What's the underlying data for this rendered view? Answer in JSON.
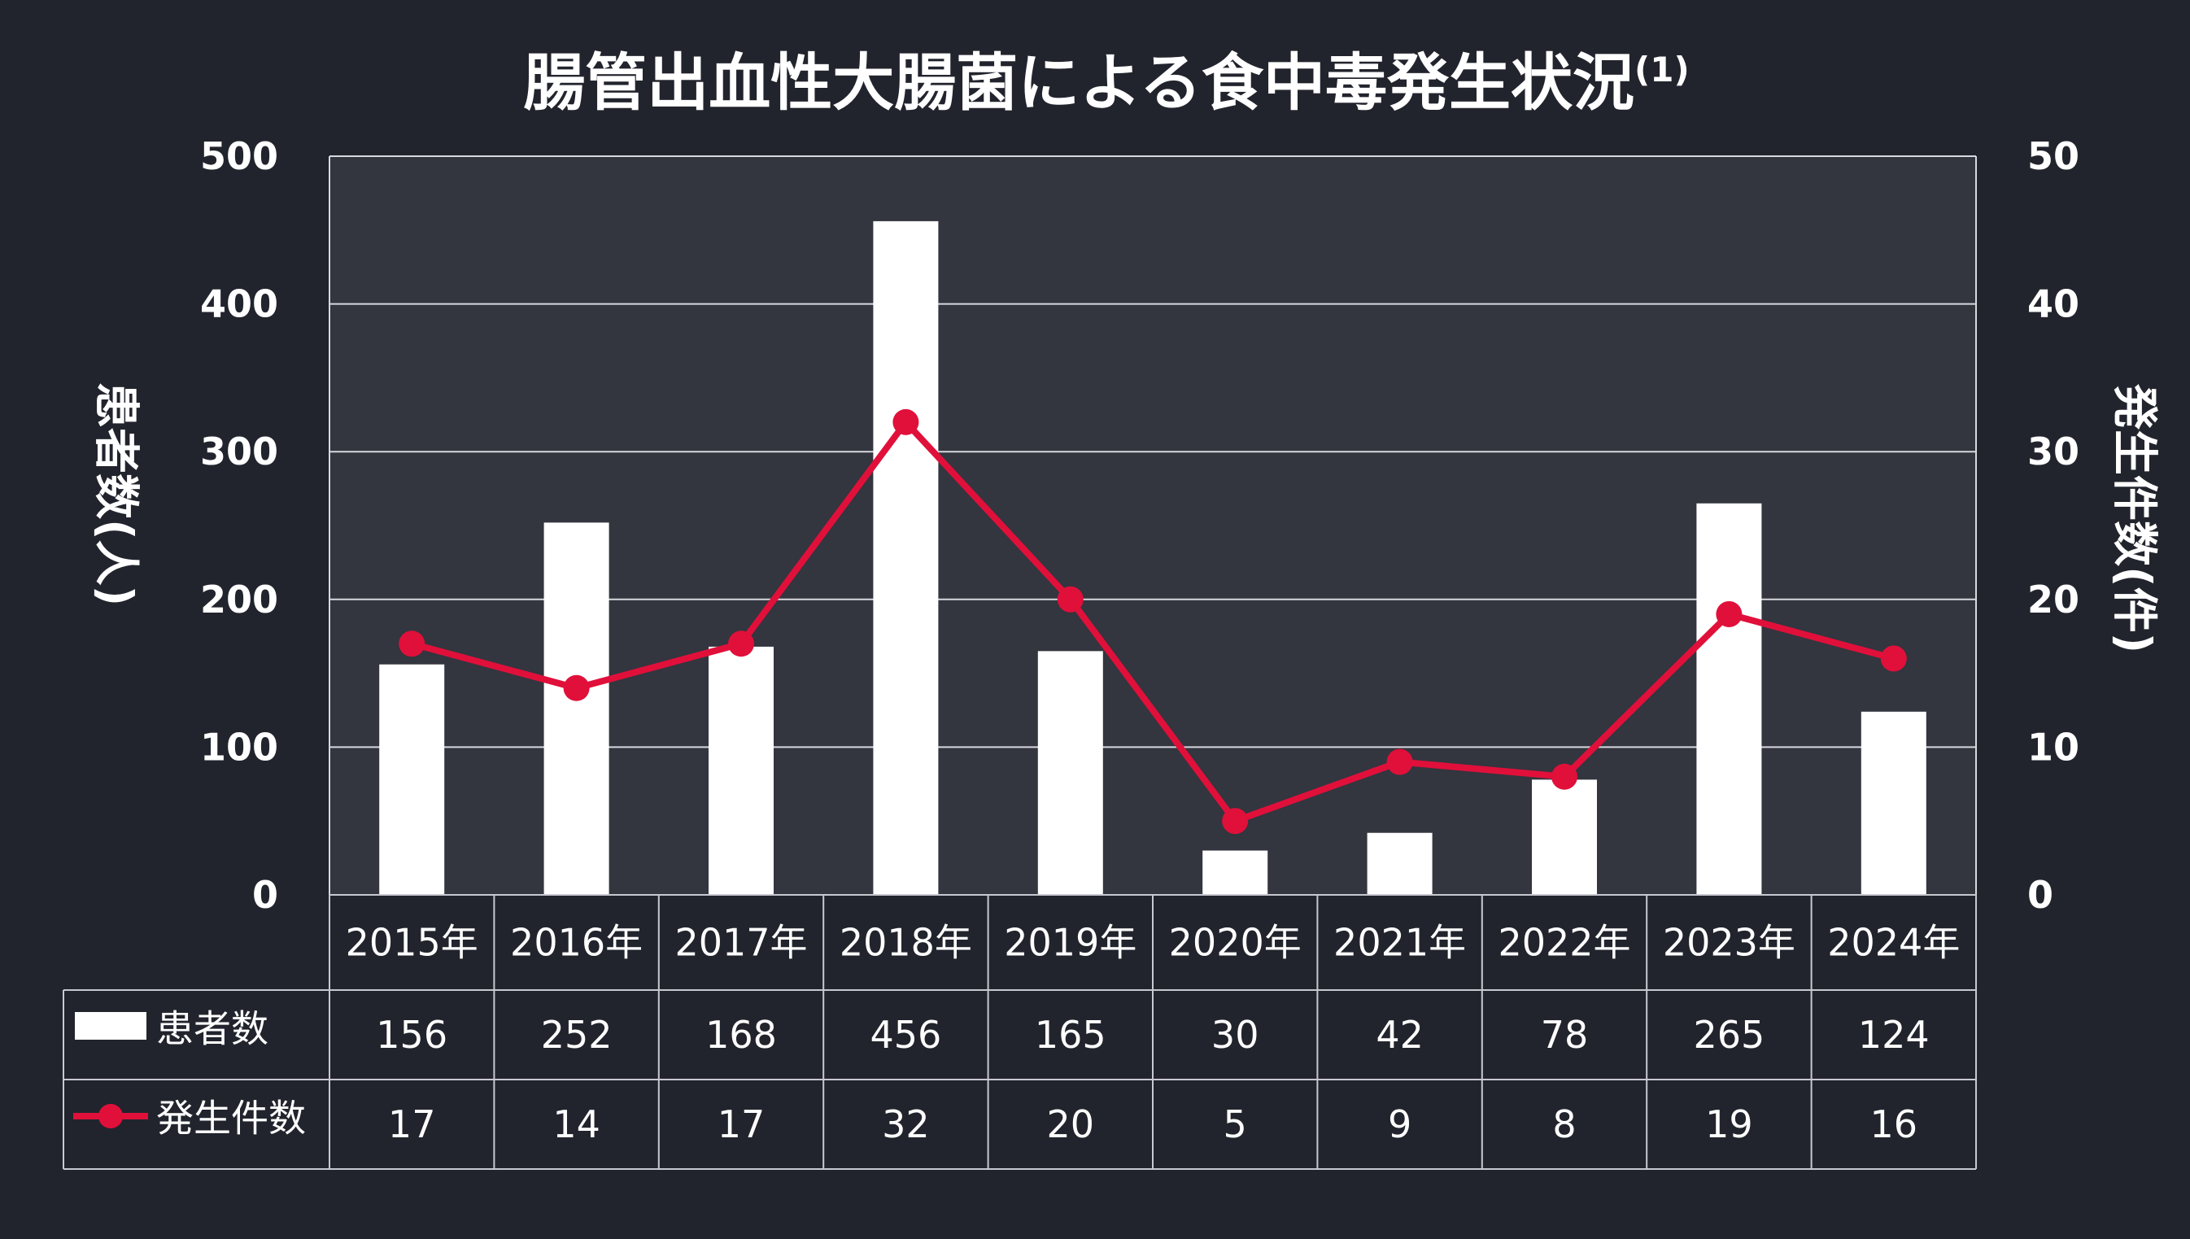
{
  "chart_data": {
    "type": "bar+line",
    "title": "腸管出血性大腸菌による食中毒発生状況",
    "title_superscript": "(1)",
    "categories": [
      "2015年",
      "2016年",
      "2017年",
      "2018年",
      "2019年",
      "2020年",
      "2021年",
      "2022年",
      "2023年",
      "2024年"
    ],
    "series": [
      {
        "name": "患者数",
        "type": "bar",
        "axis": "left",
        "values": [
          156,
          252,
          168,
          456,
          165,
          30,
          42,
          78,
          265,
          124
        ]
      },
      {
        "name": "発生件数",
        "type": "line",
        "axis": "right",
        "values": [
          17,
          14,
          17,
          32,
          20,
          5,
          9,
          8,
          19,
          16
        ]
      }
    ],
    "left_axis": {
      "label": "患者数(人)",
      "min": 0,
      "max": 500,
      "ticks": [
        "0",
        "100",
        "200",
        "300",
        "400",
        "500"
      ]
    },
    "right_axis": {
      "label": "発生件数(件)",
      "min": 0,
      "max": 50,
      "ticks": [
        "0",
        "10",
        "20",
        "30",
        "40",
        "50"
      ]
    },
    "grid": true,
    "data_table": true
  },
  "colors": {
    "background": "#22242d",
    "plot_background": "#33353f",
    "bar": "#ffffff",
    "line": "#e0103a",
    "text": "#ffffff"
  }
}
